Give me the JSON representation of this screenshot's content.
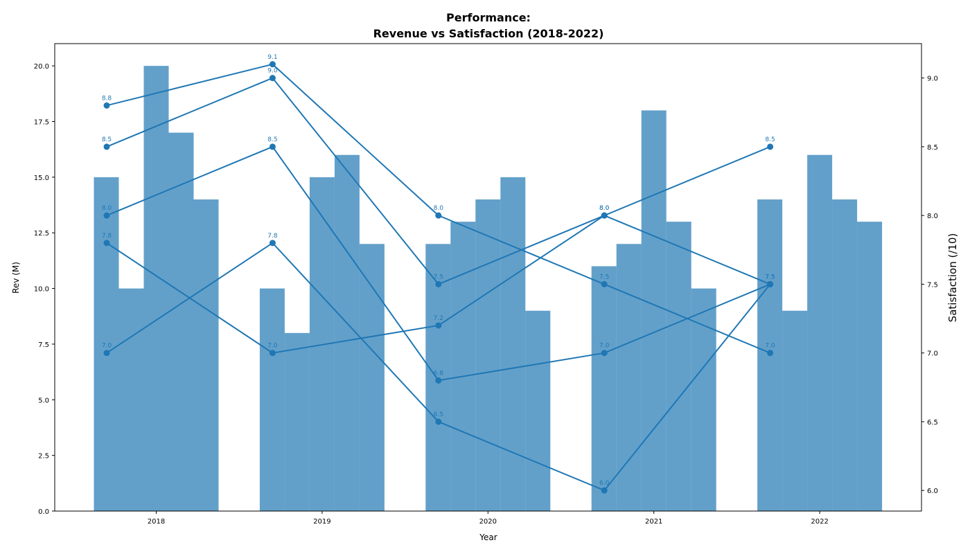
{
  "chart_data": {
    "type": "bar",
    "title": "Performance:",
    "subtitle": "Revenue vs Satisfaction (2018-2022)",
    "xlabel": "Year",
    "ylabel": "Rev (M)",
    "y2label": "Satisfaction (/10)",
    "categories": [
      "2018",
      "2019",
      "2020",
      "2021",
      "2022"
    ],
    "ylim": [
      0,
      21
    ],
    "y2lim": [
      5.85,
      9.25
    ],
    "yticks": [
      "0.0",
      "2.5",
      "5.0",
      "7.5",
      "10.0",
      "12.5",
      "15.0",
      "17.5",
      "20.0"
    ],
    "y2ticks": [
      "6.0",
      "6.5",
      "7.0",
      "7.5",
      "8.0",
      "8.5",
      "9.0"
    ],
    "bar_color": "#1f77b4",
    "line_color": "#1f77b4",
    "grid": false,
    "revenue_series": [
      {
        "values": [
          15,
          10,
          12,
          11,
          14
        ]
      },
      {
        "values": [
          10,
          8,
          13,
          12,
          9
        ]
      },
      {
        "values": [
          20,
          15,
          14,
          18,
          16
        ]
      },
      {
        "values": [
          17,
          16,
          15,
          13,
          14
        ]
      },
      {
        "values": [
          14,
          12,
          9,
          10,
          13
        ]
      }
    ],
    "satisfaction_series": [
      {
        "values": [
          8.8,
          9.1,
          8.0,
          7.5,
          7.0
        ],
        "labels": [
          "8.8",
          "9.1",
          "8.0",
          "7.5",
          "7.0"
        ]
      },
      {
        "values": [
          8.5,
          9.0,
          7.5,
          8.0,
          8.5
        ],
        "labels": [
          "8.5",
          "9.0",
          "7.5",
          "8.0",
          "8.5"
        ]
      },
      {
        "values": [
          8.0,
          8.5,
          6.8,
          7.0,
          7.5
        ],
        "labels": [
          "8.0",
          "8.5",
          "6.8",
          "7.0",
          "7.5"
        ]
      },
      {
        "values": [
          7.8,
          7.0,
          7.2,
          8.0,
          7.5
        ],
        "labels": [
          "7.8",
          "7.0",
          "7.2",
          "8.0",
          "7.5"
        ]
      },
      {
        "values": [
          7.0,
          7.8,
          6.5,
          6.0,
          7.5
        ],
        "labels": [
          "7.0",
          "7.8",
          "6.5",
          "6.0",
          "7.5"
        ]
      }
    ]
  }
}
